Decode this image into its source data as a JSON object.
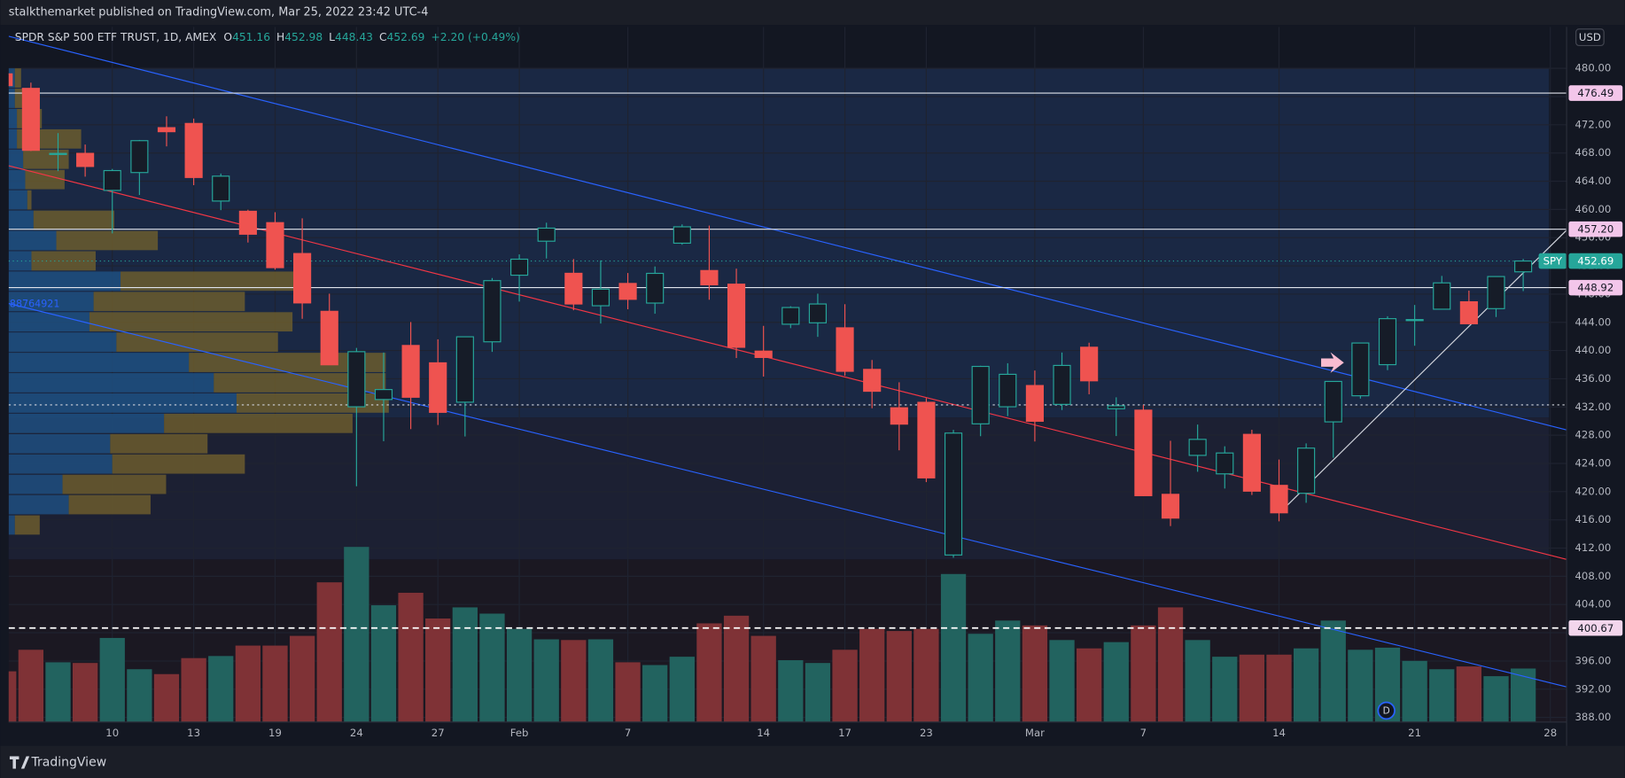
{
  "header": {
    "publisher": "stalkthemarket published on TradingView.com, Mar 25, 2022 23:42 UTC-4"
  },
  "footer": {
    "brand": "TradingView"
  },
  "chart_data": {
    "type": "candlestick",
    "title": "SPDR S&P 500 ETF TRUST, 1D, AMEX",
    "ohlc_labels": [
      "O",
      "H",
      "L",
      "C"
    ],
    "change": "+2.20 (+0.49%)",
    "symbol": "SPY",
    "currency": "USD",
    "profile_total": "88764921",
    "open": [
      479.22,
      477.16,
      467.89,
      467.95,
      462.7,
      465.23,
      471.59,
      472.19,
      461.19,
      459.74,
      458.13,
      453.75,
      445.56,
      432.03,
      433.06,
      440.72,
      438.26,
      432.68,
      441.24,
      450.68,
      455.5,
      450.95,
      446.35,
      449.51,
      446.73,
      455.22,
      451.34,
      449.41,
      439.92,
      443.73,
      443.93,
      443.22,
      437.33,
      431.89,
      432.66,
      411.02,
      429.61,
      432.03,
      435.04,
      432.37,
      440.47,
      431.75,
      431.55,
      419.62,
      425.14,
      422.52,
      428.12,
      420.89,
      419.77,
      429.89,
      433.59,
      438.0,
      444.34,
      445.86,
      446.91,
      445.94,
      451.16
    ],
    "high": [
      479.98,
      477.98,
      470.82,
      469.2,
      465.74,
      469.85,
      473.2,
      472.88,
      465.09,
      459.96,
      459.61,
      458.74,
      448.06,
      440.38,
      439.72,
      444.04,
      441.59,
      442.0,
      450.28,
      453.63,
      458.12,
      452.97,
      452.78,
      450.99,
      451.92,
      457.88,
      457.71,
      451.61,
      443.5,
      446.28,
      448.06,
      446.57,
      438.66,
      435.5,
      433.26,
      428.76,
      437.84,
      438.2,
      437.17,
      439.72,
      441.11,
      433.37,
      432.3,
      427.21,
      429.51,
      426.43,
      428.77,
      424.55,
      426.84,
      435.68,
      441.07,
      444.86,
      446.46,
      450.58,
      448.49,
      450.5,
      452.98
    ],
    "low": [
      475.58,
      468.28,
      465.43,
      464.65,
      456.6,
      462.05,
      468.94,
      463.44,
      459.9,
      455.31,
      451.46,
      444.5,
      437.95,
      420.76,
      427.15,
      428.86,
      429.45,
      427.82,
      439.81,
      446.94,
      453.05,
      445.71,
      443.83,
      445.85,
      445.22,
      455.0,
      447.2,
      438.94,
      436.31,
      443.18,
      441.94,
      436.42,
      431.82,
      425.86,
      421.35,
      410.64,
      427.86,
      430.7,
      427.11,
      431.57,
      433.8,
      427.88,
      419.36,
      415.12,
      422.82,
      420.44,
      419.53,
      415.79,
      418.42,
      424.8,
      433.19,
      437.22,
      440.68,
      445.86,
      443.71,
      444.76,
      448.43
    ],
    "close": [
      477.55,
      468.38,
      467.94,
      466.09,
      465.51,
      469.75,
      471.02,
      464.53,
      464.72,
      456.49,
      451.75,
      446.75,
      437.98,
      439.84,
      434.47,
      433.38,
      431.24,
      441.95,
      449.91,
      452.95,
      457.35,
      446.6,
      448.7,
      447.26,
      450.94,
      457.54,
      449.32,
      440.46,
      439.02,
      446.1,
      446.6,
      437.06,
      434.23,
      429.57,
      421.95,
      428.3,
      437.75,
      436.63,
      429.98,
      437.89,
      435.71,
      432.17,
      419.43,
      416.25,
      427.41,
      425.48,
      420.07,
      417.0,
      426.17,
      435.62,
      441.07,
      444.52,
      444.39,
      449.59,
      443.8,
      450.49,
      452.69
    ],
    "volume": [
      73,
      104,
      86,
      85,
      121,
      76,
      69,
      92,
      95,
      110,
      110,
      124,
      201,
      252,
      168,
      186,
      149,
      165,
      156,
      134,
      119,
      118,
      119,
      86,
      82,
      94,
      142,
      153,
      124,
      89,
      85,
      104,
      134,
      131,
      134,
      213,
      127,
      146,
      139,
      118,
      106,
      115,
      139,
      165,
      118,
      94,
      97,
      97,
      106,
      146,
      104,
      107,
      88,
      76,
      80,
      66,
      77
    ],
    "up_color": "#26a69a",
    "down_color": "#ef5350",
    "volume_up_color": "#22635f",
    "volume_down_color": "#7f3236",
    "xlim": [
      0.18,
      57.6
    ],
    "xticks": [
      {
        "value": 4,
        "label": "10"
      },
      {
        "value": 7,
        "label": "13"
      },
      {
        "value": 10,
        "label": "19"
      },
      {
        "value": 13,
        "label": "24"
      },
      {
        "value": 16,
        "label": "27"
      },
      {
        "value": 19,
        "label": "Feb"
      },
      {
        "value": 23,
        "label": "7"
      },
      {
        "value": 28,
        "label": "14"
      },
      {
        "value": 31,
        "label": "17"
      },
      {
        "value": 34,
        "label": "23"
      },
      {
        "value": 38,
        "label": "Mar"
      },
      {
        "value": 42,
        "label": "7"
      },
      {
        "value": 47,
        "label": "14"
      },
      {
        "value": 52,
        "label": "21"
      },
      {
        "value": 57,
        "label": "28"
      }
    ],
    "ylim": [
      387.34,
      485.87
    ],
    "yticks": [
      {
        "value": 388,
        "label": "388.00"
      },
      {
        "value": 392,
        "label": "392.00"
      },
      {
        "value": 396,
        "label": "396.00"
      },
      {
        "value": 400,
        "label": "400.00"
      },
      {
        "value": 404,
        "label": "404.00"
      },
      {
        "value": 408,
        "label": "408.00"
      },
      {
        "value": 412,
        "label": "412.00"
      },
      {
        "value": 416,
        "label": "416.00"
      },
      {
        "value": 420,
        "label": "420.00"
      },
      {
        "value": 424,
        "label": "424.00"
      },
      {
        "value": 428,
        "label": "428.00"
      },
      {
        "value": 432,
        "label": "432.00"
      },
      {
        "value": 436,
        "label": "436.00"
      },
      {
        "value": 440,
        "label": "440.00"
      },
      {
        "value": 444,
        "label": "444.00"
      },
      {
        "value": 448,
        "label": "448.00"
      },
      {
        "value": 452,
        "label": "452.00"
      },
      {
        "value": 456,
        "label": "456.00"
      },
      {
        "value": 460,
        "label": "460.00"
      },
      {
        "value": 464,
        "label": "464.00"
      },
      {
        "value": 468,
        "label": "468.00"
      },
      {
        "value": 472,
        "label": "472.00"
      },
      {
        "value": 476,
        "label": "476.00"
      },
      {
        "value": 480,
        "label": "480.00"
      }
    ],
    "volume_lim": [
      0,
      1000
    ],
    "grid": true,
    "hlines": [
      476.49,
      {
        "value": 457.2,
        "label": "457.20"
      },
      448.92
    ],
    "dotted_level": 432.3,
    "volume_line": 400.67,
    "trendlines": [
      {
        "color": "#2962ff",
        "x": [
          0.18,
          57.6
        ],
        "y": [
          484.55,
          428.75
        ]
      },
      {
        "color": "#f23645",
        "x": [
          0.18,
          57.6
        ],
        "y": [
          466.2,
          410.4
        ]
      },
      {
        "color": "#2962ff",
        "x": [
          0.18,
          57.6
        ],
        "y": [
          446.67,
          392.33
        ]
      },
      {
        "color": "#d1d4dc",
        "x": [
          47.22,
          57.61
        ],
        "y": [
          417.74,
          457.1
        ]
      }
    ],
    "volume_profile": {
      "levels": [
        480,
        477.12,
        474.24,
        471.36,
        468.48,
        465.6,
        462.72,
        459.84,
        456.96,
        454.08,
        451.2,
        448.32,
        445.44,
        442.56,
        439.68,
        436.8,
        433.92,
        431.04,
        428.16,
        425.28,
        422.4,
        419.52,
        416.64,
        413.76
      ],
      "up": [
        6,
        6,
        8,
        8,
        14,
        16,
        18,
        24,
        46,
        22,
        108,
        82,
        78,
        104,
        174,
        198,
        220,
        150,
        98,
        100,
        52,
        58,
        6
      ],
      "down": [
        6,
        8,
        24,
        62,
        44,
        38,
        4,
        78,
        98,
        62,
        174,
        146,
        196,
        156,
        190,
        166,
        147,
        182,
        94,
        128,
        100,
        79,
        24
      ],
      "up_color": "#1f4f80",
      "down_color": "#6b5c2e"
    }
  }
}
